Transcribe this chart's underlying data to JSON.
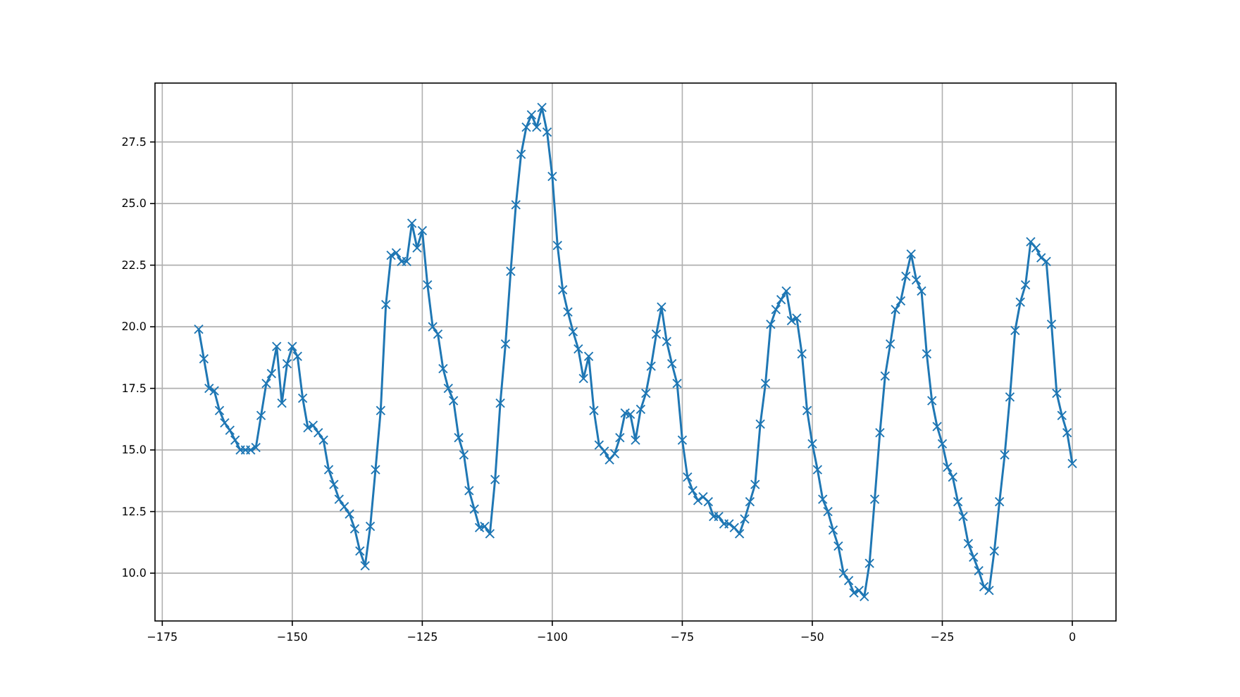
{
  "chart_data": {
    "type": "line",
    "marker": "cross",
    "grid": true,
    "xlim": [
      -176.4,
      8.4
    ],
    "ylim": [
      8.06,
      29.89
    ],
    "xticks": [
      {
        "value": -175,
        "label": "−175"
      },
      {
        "value": -150,
        "label": "−150"
      },
      {
        "value": -125,
        "label": "−125"
      },
      {
        "value": -100,
        "label": "−100"
      },
      {
        "value": -75,
        "label": "−75"
      },
      {
        "value": -50,
        "label": "−50"
      },
      {
        "value": -25,
        "label": "−25"
      },
      0
    ],
    "yticks": [
      {
        "value": 10,
        "label": "10.0"
      },
      {
        "value": 12.5,
        "label": "12.5"
      },
      {
        "value": 15,
        "label": "15.0"
      },
      {
        "value": 17.5,
        "label": "17.5"
      },
      {
        "value": 20,
        "label": "20.0"
      },
      {
        "value": 22.5,
        "label": "22.5"
      },
      {
        "value": 25,
        "label": "25.0"
      },
      {
        "value": 27.5,
        "label": "27.5"
      }
    ],
    "x": [
      -168,
      -167,
      -166,
      -165,
      -164,
      -163,
      -162,
      -161,
      -160,
      -159,
      -158,
      -157,
      -156,
      -155,
      -154,
      -153,
      -152,
      -151,
      -150,
      -149,
      -148,
      -147,
      -146,
      -145,
      -144,
      -143,
      -142,
      -141,
      -140,
      -139,
      -138,
      -137,
      -136,
      -135,
      -134,
      -133,
      -132,
      -131,
      -130,
      -129,
      -128,
      -127,
      -126,
      -125,
      -124,
      -123,
      -122,
      -121,
      -120,
      -119,
      -118,
      -117,
      -116,
      -115,
      -114,
      -113,
      -112,
      -111,
      -110,
      -109,
      -108,
      -107,
      -106,
      -105,
      -104,
      -103,
      -102,
      -101,
      -100,
      -99,
      -98,
      -97,
      -96,
      -95,
      -94,
      -93,
      -92,
      -91,
      -90,
      -89,
      -88,
      -87,
      -86,
      -85,
      -84,
      -83,
      -82,
      -81,
      -80,
      -79,
      -78,
      -77,
      -76,
      -75,
      -74,
      -73,
      -72,
      -71,
      -70,
      -69,
      -68,
      -67,
      -66,
      -65,
      -64,
      -63,
      -62,
      -61,
      -60,
      -59,
      -58,
      -57,
      -56,
      -55,
      -54,
      -53,
      -52,
      -51,
      -50,
      -49,
      -48,
      -47,
      -46,
      -45,
      -44,
      -43,
      -42,
      -41,
      -40,
      -39,
      -38,
      -37,
      -36,
      -35,
      -34,
      -33,
      -32,
      -31,
      -30,
      -29,
      -28,
      -27,
      -26,
      -25,
      -24,
      -23,
      -22,
      -21,
      -20,
      -19,
      -18,
      -17,
      -16,
      -15,
      -14,
      -13,
      -12,
      -11,
      -10,
      -9,
      -8,
      -7,
      -6,
      -5,
      -4,
      -3,
      -2,
      -1,
      0
    ],
    "series": [
      {
        "color": "#1f77b4",
        "values": [
          19.9,
          18.7,
          17.5,
          17.4,
          16.6,
          16.1,
          15.8,
          15.4,
          15.0,
          15.0,
          15.0,
          15.1,
          16.4,
          17.7,
          18.1,
          19.2,
          16.9,
          18.5,
          19.2,
          18.8,
          17.1,
          15.9,
          16.0,
          15.7,
          15.4,
          14.2,
          13.6,
          13.0,
          12.7,
          12.4,
          11.8,
          10.9,
          10.3,
          11.9,
          14.2,
          16.6,
          20.9,
          22.9,
          23.0,
          22.65,
          22.65,
          24.2,
          23.2,
          23.9,
          21.7,
          20.0,
          19.7,
          18.3,
          17.5,
          17.0,
          15.5,
          14.8,
          13.35,
          12.6,
          11.85,
          11.9,
          11.6,
          13.8,
          16.9,
          19.3,
          22.25,
          24.95,
          27.0,
          28.1,
          28.6,
          28.1,
          28.9,
          27.9,
          26.1,
          23.3,
          21.5,
          20.6,
          19.8,
          19.1,
          17.9,
          18.8,
          16.6,
          15.2,
          14.95,
          14.6,
          14.85,
          15.5,
          16.5,
          16.45,
          15.4,
          16.65,
          17.3,
          18.4,
          19.7,
          20.8,
          19.4,
          18.5,
          17.7,
          15.4,
          13.9,
          13.35,
          12.95,
          13.1,
          12.9,
          12.3,
          12.3,
          12.0,
          12.0,
          11.85,
          11.6,
          12.2,
          12.9,
          13.6,
          16.05,
          17.7,
          20.1,
          20.7,
          21.1,
          21.45,
          20.25,
          20.35,
          18.9,
          16.6,
          15.25,
          14.2,
          13.0,
          12.5,
          11.75,
          11.1,
          10.0,
          9.7,
          9.2,
          9.3,
          9.05,
          10.4,
          13.0,
          15.7,
          18.0,
          19.3,
          20.7,
          21.05,
          22.05,
          22.95,
          21.9,
          21.45,
          18.9,
          17.0,
          15.95,
          15.25,
          14.3,
          13.9,
          12.9,
          12.3,
          11.2,
          10.65,
          10.1,
          9.45,
          9.3,
          10.9,
          12.9,
          14.8,
          17.15,
          19.85,
          21.0,
          21.7,
          23.45,
          23.2,
          22.8,
          22.65,
          20.1,
          17.3,
          16.4,
          15.7,
          14.45
        ]
      }
    ]
  }
}
